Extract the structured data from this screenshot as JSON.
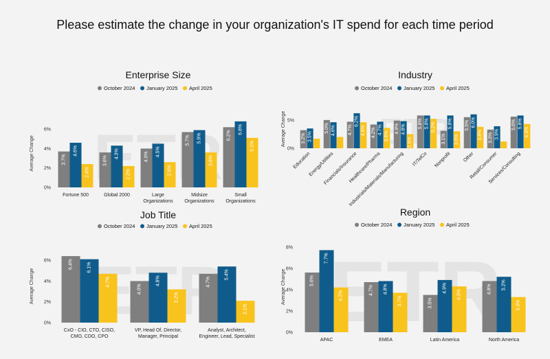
{
  "page": {
    "title": "Please estimate the change in your organization's IT spend for each time period"
  },
  "colors": {
    "October 2024": "#7f7f7f",
    "January 2025": "#0f5c8c",
    "April 2025": "#f9c31d"
  },
  "chart_data": [
    {
      "id": "enterprise",
      "type": "bar",
      "title": "Enterprise Size",
      "ylabel": "Average Change",
      "ylim": [
        0,
        7
      ],
      "yticks": [
        0,
        2,
        4,
        6
      ],
      "tick_format": "%",
      "legend": [
        "October 2024",
        "January 2025",
        "April 2025"
      ],
      "categories": [
        [
          "Fortune 500"
        ],
        [
          "Global 2000"
        ],
        [
          "Large",
          "Organizations"
        ],
        [
          "Midsize",
          "Organizations"
        ],
        [
          "Small",
          "Organizations"
        ]
      ],
      "series": [
        {
          "name": "October 2024",
          "values": [
            3.7,
            3.6,
            4.0,
            5.7,
            6.2
          ],
          "labels": [
            "3.7%",
            "3.6%",
            "4.0%",
            "5.7%",
            "6.2%"
          ]
        },
        {
          "name": "January 2025",
          "values": [
            4.6,
            4.3,
            4.5,
            5.9,
            6.8
          ],
          "labels": [
            "4.6%",
            "4.3%",
            "4.5%",
            "5.9%",
            "6.8%"
          ]
        },
        {
          "name": "April 2025",
          "values": [
            2.4,
            2.2,
            2.6,
            3.6,
            5.1
          ],
          "labels": [
            "2.4%",
            "2.2%",
            "2.6%",
            "3.6%",
            "5.1%"
          ]
        }
      ]
    },
    {
      "id": "industry",
      "type": "bar",
      "title": "Industry",
      "ylabel": "Average Change",
      "ylim": [
        0,
        6.8
      ],
      "yticks": [
        0,
        5
      ],
      "tick_format": "%",
      "rotated": true,
      "legend": [
        "October 2024",
        "January 2025",
        "April 2025"
      ],
      "categories": [
        [
          "Education"
        ],
        [
          "Energy/Utilities"
        ],
        [
          "Financials/Insurance"
        ],
        [
          "Healthcare/Pharma"
        ],
        [
          "Industrials/Materials/Manufacturing"
        ],
        [
          "IT/TelCo"
        ],
        [
          "Nonprofit"
        ],
        [
          "Other"
        ],
        [
          "Retail/Consumer"
        ],
        [
          "Services/Consulting"
        ]
      ],
      "series": [
        {
          "name": "October 2024",
          "values": [
            3.2,
            5.0,
            4.7,
            4.2,
            4.9,
            5.8,
            3.1,
            5.5,
            3.3,
            5.6
          ],
          "labels": [
            "3.2%",
            "5.0%",
            "4.7%",
            "4.2%",
            "4.9%",
            "5.8%",
            "3.1%",
            "5.5%",
            "3.3%",
            "5.6%"
          ]
        },
        {
          "name": "January 2025",
          "values": [
            3.5,
            4.6,
            6.2,
            4.7,
            4.8,
            5.8,
            5.8,
            6.0,
            3.9,
            5.8
          ],
          "labels": [
            "3.5%",
            "4.6%",
            "6.2%",
            "4.7%",
            "4.8%",
            "5.8%",
            "5.8%",
            "6.0%",
            "3.9%",
            "5.8%"
          ]
        },
        {
          "name": "April 2025",
          "values": [
            1.7,
            2.0,
            4.6,
            3.6,
            2.5,
            5.2,
            3.0,
            3.8,
            1.2,
            4.3
          ],
          "labels": [
            "",
            "",
            "4.6%",
            "3.6%",
            "2.5%",
            "5.2%",
            "3.0%",
            "3.8%",
            "",
            "4.3%"
          ]
        }
      ]
    },
    {
      "id": "jobtitle",
      "type": "bar",
      "title": "Job Title",
      "ylabel": "Average Change",
      "ylim": [
        0,
        7
      ],
      "yticks": [
        0,
        2,
        4,
        6
      ],
      "tick_format": "%",
      "legend": [
        "October 2024",
        "January 2025",
        "April 2025"
      ],
      "categories": [
        [
          "CxO - CIO, CTO, CISO,",
          "CMO, CDO, CPO"
        ],
        [
          "VP, Head Of, Director,",
          "Manager, Principal"
        ],
        [
          "Analyst, Architect,",
          "Engineer, Lead, Specialist"
        ]
      ],
      "series": [
        {
          "name": "October 2024",
          "values": [
            6.4,
            4.0,
            4.7
          ],
          "labels": [
            "6.4%",
            "4.0%",
            "4.7%"
          ]
        },
        {
          "name": "January 2025",
          "values": [
            6.1,
            4.8,
            5.4
          ],
          "labels": [
            "6.1%",
            "4.8%",
            "5.4%"
          ]
        },
        {
          "name": "April 2025",
          "values": [
            4.7,
            3.2,
            2.1
          ],
          "labels": [
            "4.7%",
            "3.2%",
            "2.1%"
          ]
        }
      ]
    },
    {
      "id": "region",
      "type": "bar",
      "title": "Region",
      "ylabel": "Average Change",
      "ylim": [
        0,
        8.5
      ],
      "yticks": [
        0,
        2,
        4,
        6,
        8
      ],
      "tick_format": "%",
      "legend": [
        "October 2024",
        "January 2025",
        "April 2025"
      ],
      "categories": [
        [
          "APAC"
        ],
        [
          "EMEA"
        ],
        [
          "Latin America"
        ],
        [
          "North America"
        ]
      ],
      "series": [
        {
          "name": "October 2024",
          "values": [
            5.6,
            4.7,
            3.5,
            4.8
          ],
          "labels": [
            "5.6%",
            "4.7%",
            "3.5%",
            "4.8%"
          ]
        },
        {
          "name": "January 2025",
          "values": [
            7.7,
            4.8,
            4.9,
            5.2
          ],
          "labels": [
            "7.7%",
            "4.8%",
            "4.9%",
            "5.2%"
          ]
        },
        {
          "name": "April 2025",
          "values": [
            4.2,
            3.7,
            4.3,
            3.3
          ],
          "labels": [
            "4.2%",
            "3.7%",
            "4.3%",
            "3.3%"
          ]
        }
      ]
    }
  ]
}
